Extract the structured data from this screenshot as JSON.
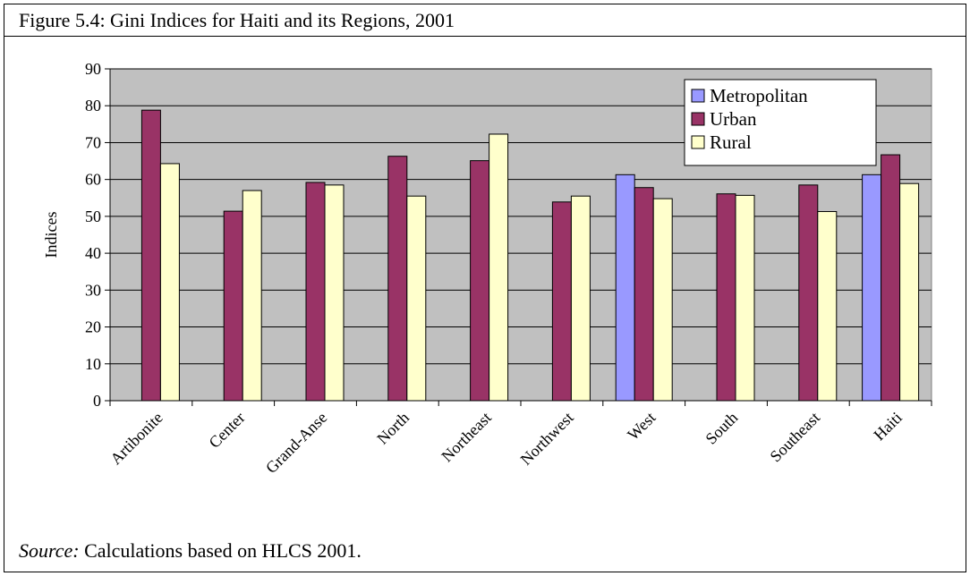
{
  "figure": {
    "title": "Figure 5.4: Gini Indices for Haiti and its Regions, 2001",
    "source_label": "Source:",
    "source_text": " Calculations based on HLCS 2001."
  },
  "chart_data": {
    "type": "bar",
    "categories": [
      "Artibonite",
      "Center",
      "Grand-Anse",
      "North",
      "Northeast",
      "Northwest",
      "West",
      "South",
      "Southeast",
      "Haiti"
    ],
    "series": [
      {
        "name": "Metropolitan",
        "color": "#9999ff",
        "values": [
          null,
          null,
          null,
          null,
          null,
          null,
          61.3,
          null,
          null,
          61.3
        ]
      },
      {
        "name": "Urban",
        "color": "#993366",
        "values": [
          78.8,
          51.4,
          59.2,
          66.3,
          65.1,
          53.9,
          57.8,
          56.1,
          58.5,
          66.7
        ]
      },
      {
        "name": "Rural",
        "color": "#ffffcc",
        "values": [
          64.3,
          57.0,
          58.5,
          55.5,
          72.3,
          55.5,
          54.8,
          55.7,
          51.3,
          58.9
        ]
      }
    ],
    "ylabel": "Indices",
    "ylim": [
      0,
      90
    ],
    "yticks": [
      0,
      10,
      20,
      30,
      40,
      50,
      60,
      70,
      80,
      90
    ],
    "grid": true,
    "plot_background": "#c0c0c0",
    "legend_position": "top-right"
  }
}
